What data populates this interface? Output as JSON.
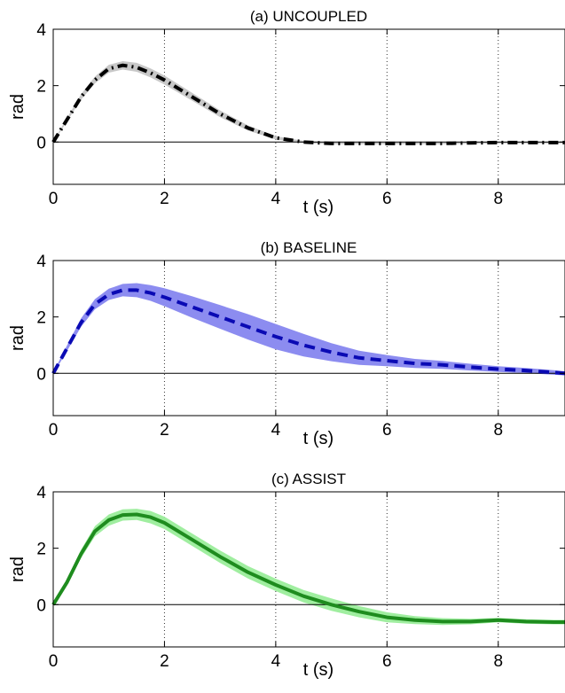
{
  "chart_data": [
    {
      "type": "line",
      "title": "(a) UNCOUPLED",
      "xlabel": "t (s)",
      "ylabel": "rad",
      "xlim": [
        0,
        9.2
      ],
      "ylim": [
        -1.5,
        4
      ],
      "xticks": [
        0,
        2,
        4,
        6,
        8
      ],
      "yticks": [
        0,
        2,
        4
      ],
      "xtick_labels": [
        "0",
        "2",
        "4",
        "6",
        "8"
      ],
      "ytick_labels": [
        "0",
        "2",
        "4"
      ],
      "grid": "x-dotted",
      "series": [
        {
          "line_style": "dash-dot",
          "color": "#000000",
          "band_color": "#c8c8c8",
          "x": [
            0,
            0.25,
            0.5,
            0.75,
            1.0,
            1.25,
            1.5,
            1.75,
            2.0,
            2.5,
            3.0,
            3.5,
            4.0,
            4.5,
            5.0,
            5.5,
            6.0,
            6.5,
            7.0,
            7.5,
            8.0,
            8.5,
            9.0,
            9.2
          ],
          "y": [
            0.0,
            0.8,
            1.6,
            2.2,
            2.6,
            2.72,
            2.65,
            2.45,
            2.2,
            1.6,
            1.0,
            0.5,
            0.15,
            0.0,
            -0.05,
            -0.05,
            -0.05,
            -0.05,
            -0.05,
            -0.03,
            -0.02,
            -0.02,
            -0.02,
            -0.02
          ],
          "band_halfwidth": [
            0.02,
            0.06,
            0.1,
            0.12,
            0.14,
            0.15,
            0.16,
            0.16,
            0.16,
            0.14,
            0.12,
            0.09,
            0.06,
            0.04,
            0.03,
            0.03,
            0.03,
            0.03,
            0.03,
            0.03,
            0.03,
            0.03,
            0.03,
            0.03
          ]
        }
      ]
    },
    {
      "type": "line",
      "title": "(b) BASELINE",
      "xlabel": "t (s)",
      "ylabel": "rad",
      "xlim": [
        0,
        9.2
      ],
      "ylim": [
        -1.5,
        4
      ],
      "xticks": [
        0,
        2,
        4,
        6,
        8
      ],
      "yticks": [
        0,
        2,
        4
      ],
      "xtick_labels": [
        "0",
        "2",
        "4",
        "6",
        "8"
      ],
      "ytick_labels": [
        "0",
        "2",
        "4"
      ],
      "grid": "x-dotted",
      "series": [
        {
          "line_style": "dashed",
          "color": "#0a0ab4",
          "band_color": "#8c8cf0",
          "x": [
            0,
            0.25,
            0.5,
            0.75,
            1.0,
            1.25,
            1.5,
            1.75,
            2.0,
            2.5,
            3.0,
            3.5,
            4.0,
            4.5,
            5.0,
            5.5,
            6.0,
            6.5,
            7.0,
            7.5,
            8.0,
            8.5,
            9.0,
            9.2
          ],
          "y": [
            0.0,
            0.9,
            1.8,
            2.45,
            2.8,
            2.95,
            2.95,
            2.85,
            2.7,
            2.35,
            2.0,
            1.65,
            1.3,
            1.0,
            0.75,
            0.55,
            0.45,
            0.35,
            0.3,
            0.22,
            0.15,
            0.1,
            0.03,
            0.0
          ],
          "band_halfwidth": [
            0.03,
            0.1,
            0.15,
            0.18,
            0.2,
            0.22,
            0.25,
            0.28,
            0.32,
            0.38,
            0.42,
            0.45,
            0.45,
            0.4,
            0.32,
            0.25,
            0.2,
            0.16,
            0.14,
            0.12,
            0.1,
            0.09,
            0.08,
            0.07
          ]
        }
      ]
    },
    {
      "type": "line",
      "title": "(c) ASSIST",
      "xlabel": "t (s)",
      "ylabel": "rad",
      "xlim": [
        0,
        9.2
      ],
      "ylim": [
        -1.5,
        4
      ],
      "xticks": [
        0,
        2,
        4,
        6,
        8
      ],
      "yticks": [
        0,
        2,
        4
      ],
      "xtick_labels": [
        "0",
        "2",
        "4",
        "6",
        "8"
      ],
      "ytick_labels": [
        "0",
        "2",
        "4"
      ],
      "grid": "x-dotted",
      "series": [
        {
          "line_style": "solid",
          "color": "#1e8c1e",
          "band_color": "#a0eea0",
          "x": [
            0,
            0.25,
            0.5,
            0.75,
            1.0,
            1.25,
            1.5,
            1.75,
            2.0,
            2.5,
            3.0,
            3.5,
            4.0,
            4.5,
            5.0,
            5.5,
            6.0,
            6.5,
            7.0,
            7.5,
            8.0,
            8.5,
            9.0,
            9.2
          ],
          "y": [
            0.0,
            0.8,
            1.8,
            2.6,
            3.0,
            3.18,
            3.2,
            3.1,
            2.9,
            2.3,
            1.7,
            1.15,
            0.7,
            0.3,
            0.0,
            -0.25,
            -0.45,
            -0.55,
            -0.6,
            -0.6,
            -0.55,
            -0.6,
            -0.62,
            -0.62
          ],
          "band_halfwidth": [
            0.03,
            0.1,
            0.15,
            0.18,
            0.2,
            0.2,
            0.2,
            0.22,
            0.22,
            0.22,
            0.22,
            0.22,
            0.22,
            0.22,
            0.22,
            0.2,
            0.18,
            0.14,
            0.12,
            0.1,
            0.08,
            0.08,
            0.08,
            0.08
          ]
        }
      ]
    }
  ]
}
